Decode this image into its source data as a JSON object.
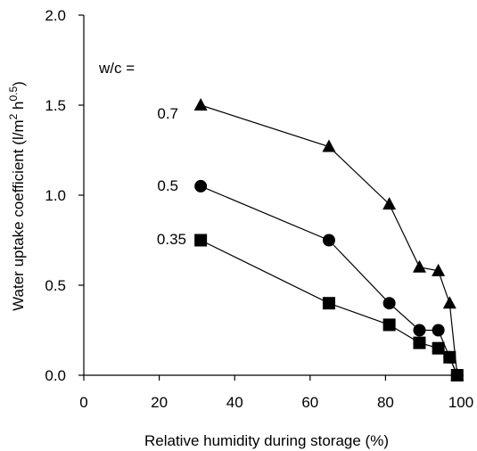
{
  "chart_data": {
    "type": "line",
    "xlabel": "Relative humidity during storage (%)",
    "ylabel_parts": [
      "Water uptake coefficient (l/m",
      "2",
      " h",
      "0.5",
      ")"
    ],
    "xlim": [
      0,
      100
    ],
    "ylim": [
      0,
      2.0
    ],
    "xticks": [
      "0",
      "20",
      "40",
      "60",
      "80",
      "100"
    ],
    "yticks": [
      "0.0",
      "0.5",
      "1.0",
      "1.5",
      "2.0"
    ],
    "grid": false,
    "legend_title": "w/c =",
    "series": [
      {
        "name": "0.7",
        "marker": "triangle",
        "x": [
          31,
          65,
          81,
          89,
          94,
          97,
          99
        ],
        "y": [
          1.5,
          1.27,
          0.95,
          0.6,
          0.58,
          0.4,
          0.0
        ]
      },
      {
        "name": "0.5",
        "marker": "circle",
        "x": [
          31,
          65,
          81,
          89,
          94,
          97,
          99
        ],
        "y": [
          1.05,
          0.75,
          0.4,
          0.25,
          0.25,
          0.1,
          0.0
        ]
      },
      {
        "name": "0.35",
        "marker": "square",
        "x": [
          31,
          65,
          81,
          89,
          94,
          97,
          99
        ],
        "y": [
          0.75,
          0.4,
          0.28,
          0.18,
          0.15,
          0.1,
          0.0
        ]
      }
    ]
  }
}
